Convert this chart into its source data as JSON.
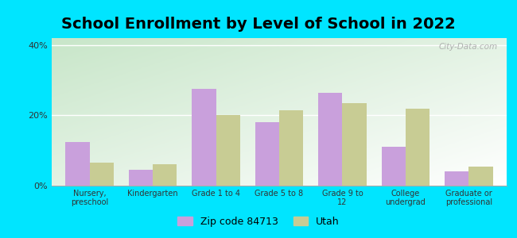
{
  "title": "School Enrollment by Level of School in 2022",
  "categories": [
    "Nursery,\npreschool",
    "Kindergarten",
    "Grade 1 to 4",
    "Grade 5 to 8",
    "Grade 9 to\n12",
    "College\nundergrad",
    "Graduate or\nprofessional"
  ],
  "zip_values": [
    12.5,
    4.5,
    27.5,
    18.0,
    26.5,
    11.0,
    4.0
  ],
  "utah_values": [
    6.5,
    6.0,
    20.0,
    21.5,
    23.5,
    22.0,
    5.5
  ],
  "zip_color": "#c9a0dc",
  "utah_color": "#c8cc94",
  "ylim": [
    0,
    42
  ],
  "yticks": [
    0,
    20,
    40
  ],
  "ytick_labels": [
    "0%",
    "20%",
    "40%"
  ],
  "background_color": "#00e5ff",
  "zip_label": "Zip code 84713",
  "utah_label": "Utah",
  "watermark": "City-Data.com",
  "title_fontsize": 14,
  "bar_width": 0.38,
  "fig_width": 6.5,
  "fig_height": 3.0,
  "grad_top_left": "#c8e6c9",
  "grad_bottom_right": "#ffffff"
}
